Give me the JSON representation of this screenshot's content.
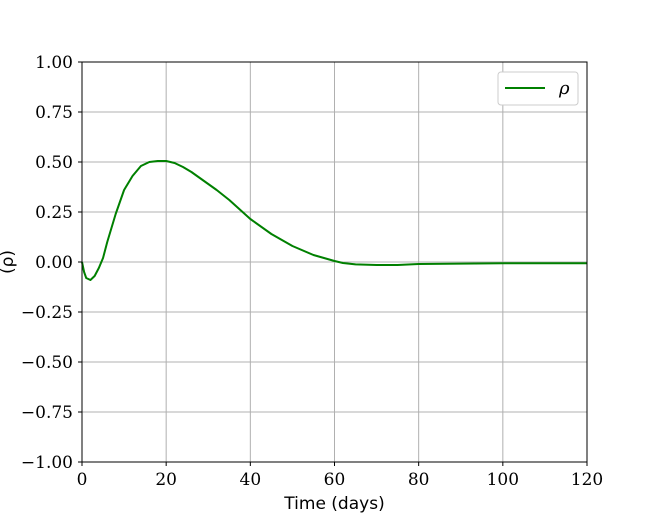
{
  "chart_data": {
    "type": "line",
    "xlabel": "Time (days)",
    "ylabel": "(ρ)",
    "xlim": [
      0,
      120
    ],
    "ylim": [
      -1.0,
      1.0
    ],
    "x_ticks": [
      "0",
      "20",
      "40",
      "60",
      "80",
      "100",
      "120"
    ],
    "y_ticks": [
      "−1.00",
      "−0.75",
      "−0.50",
      "−0.25",
      "0.00",
      "0.25",
      "0.50",
      "0.75",
      "1.00"
    ],
    "grid": true,
    "legend_position": "top-right",
    "series": [
      {
        "name": "ρ",
        "color": "#008000",
        "x": [
          0,
          0.5,
          1,
          2,
          3,
          4,
          5,
          6,
          8,
          10,
          12,
          14,
          16,
          18,
          20,
          22,
          24,
          26,
          28,
          30,
          32,
          35,
          40,
          45,
          50,
          55,
          60,
          62,
          65,
          70,
          75,
          80,
          90,
          100,
          110,
          120
        ],
        "y": [
          0.0,
          -0.05,
          -0.08,
          -0.09,
          -0.07,
          -0.03,
          0.02,
          0.1,
          0.24,
          0.36,
          0.43,
          0.48,
          0.5,
          0.505,
          0.505,
          0.495,
          0.475,
          0.45,
          0.42,
          0.39,
          0.36,
          0.31,
          0.215,
          0.14,
          0.08,
          0.035,
          0.005,
          -0.005,
          -0.012,
          -0.015,
          -0.015,
          -0.01,
          -0.008,
          -0.006,
          -0.006,
          -0.006
        ]
      }
    ]
  }
}
